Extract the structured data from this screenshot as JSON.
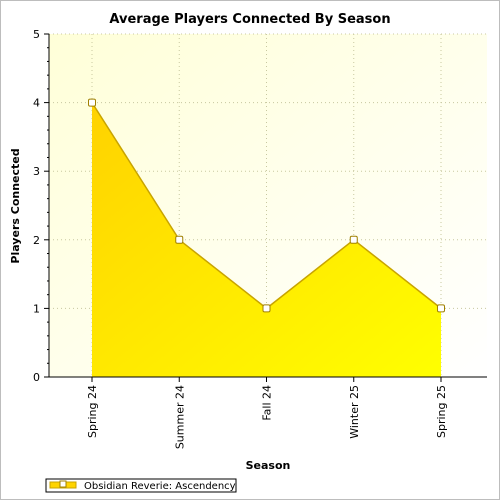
{
  "chart_data": {
    "type": "area",
    "title": "Average Players Connected By Season",
    "xlabel": "Season",
    "ylabel": "Players Connected",
    "categories": [
      "Spring 24",
      "Summer 24",
      "Fall 24",
      "Winter 25",
      "Spring 25"
    ],
    "series": [
      {
        "name": "Obsidian Reverie: Ascendency",
        "values": [
          4,
          2,
          1,
          2,
          1
        ]
      }
    ],
    "ylim": [
      0,
      5
    ],
    "yticks": [
      "0",
      "1",
      "2",
      "3",
      "4",
      "5"
    ],
    "grid": true,
    "legend": "bottom-left",
    "colors": {
      "area_top": "#ffd400",
      "area_bottom": "#ffff00",
      "line": "#c8a400",
      "plot_bg": "#ffffdf",
      "grid": "#c8c8a0"
    }
  }
}
